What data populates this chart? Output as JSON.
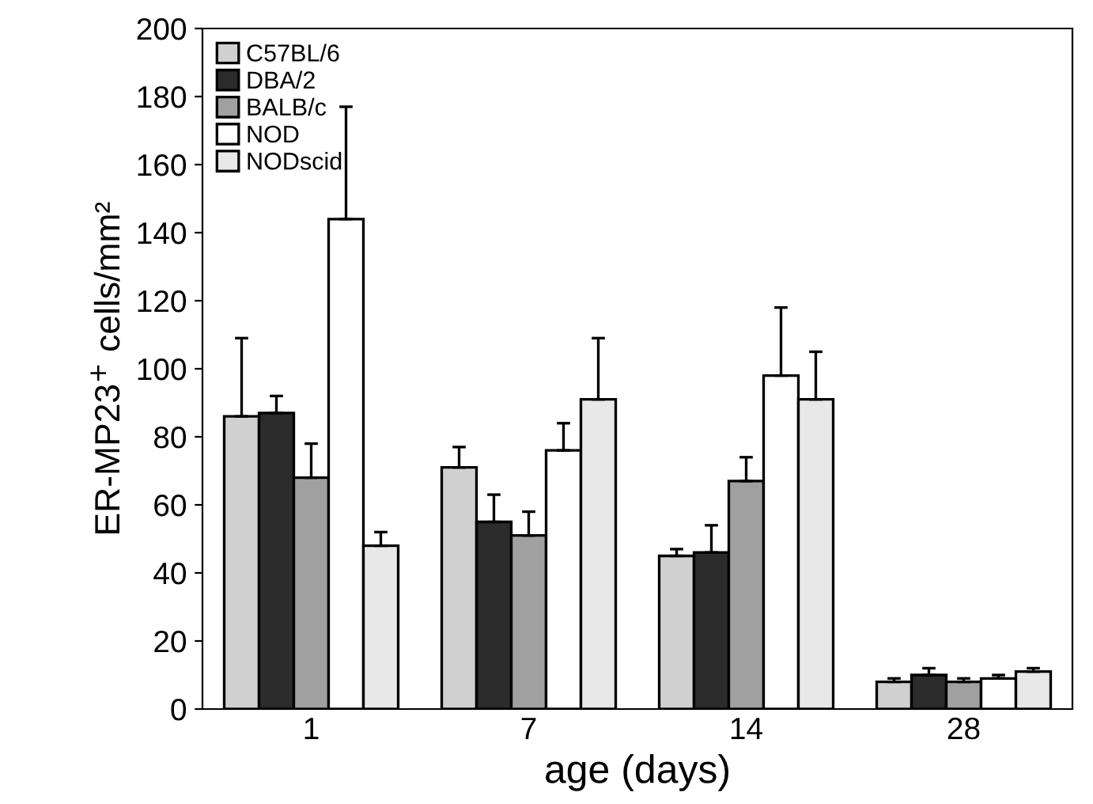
{
  "chart_data": {
    "type": "bar",
    "xlabel": "age (days)",
    "ylabel": "ER-MP23$^{+}$ cells/mm²",
    "categories": [
      "1",
      "7",
      "14",
      "28"
    ],
    "series": [
      {
        "name": "C57BL/6",
        "color": "#d0d0d0",
        "values": [
          86,
          71,
          45,
          8
        ],
        "errors": [
          [
            86,
            109
          ],
          [
            71,
            77
          ],
          [
            45,
            47
          ],
          [
            8,
            9
          ]
        ]
      },
      {
        "name": "DBA/2",
        "color": "#2b2b2b",
        "values": [
          87,
          55,
          46,
          10
        ],
        "errors": [
          [
            87,
            92
          ],
          [
            55,
            63
          ],
          [
            46,
            54
          ],
          [
            10,
            12
          ]
        ]
      },
      {
        "name": "BALB/c",
        "color": "#a0a0a0",
        "values": [
          68,
          51,
          67,
          8
        ],
        "errors": [
          [
            68,
            78
          ],
          [
            51,
            58
          ],
          [
            67,
            74
          ],
          [
            8,
            9
          ]
        ]
      },
      {
        "name": "NOD",
        "color": "#ffffff",
        "values": [
          144,
          76,
          98,
          9
        ],
        "errors": [
          [
            144,
            177
          ],
          [
            76,
            84
          ],
          [
            98,
            118
          ],
          [
            9,
            10
          ]
        ]
      },
      {
        "name": "NODscid",
        "color": "#e8e8e8",
        "values": [
          48,
          91,
          91,
          11
        ],
        "errors": [
          [
            48,
            52
          ],
          [
            91,
            109
          ],
          [
            91,
            105
          ],
          [
            11,
            12
          ]
        ]
      }
    ],
    "ylim": [
      0,
      200
    ],
    "yticks": [
      0,
      20,
      40,
      60,
      80,
      100,
      120,
      140,
      160,
      180,
      200
    ],
    "legend": "top left"
  }
}
